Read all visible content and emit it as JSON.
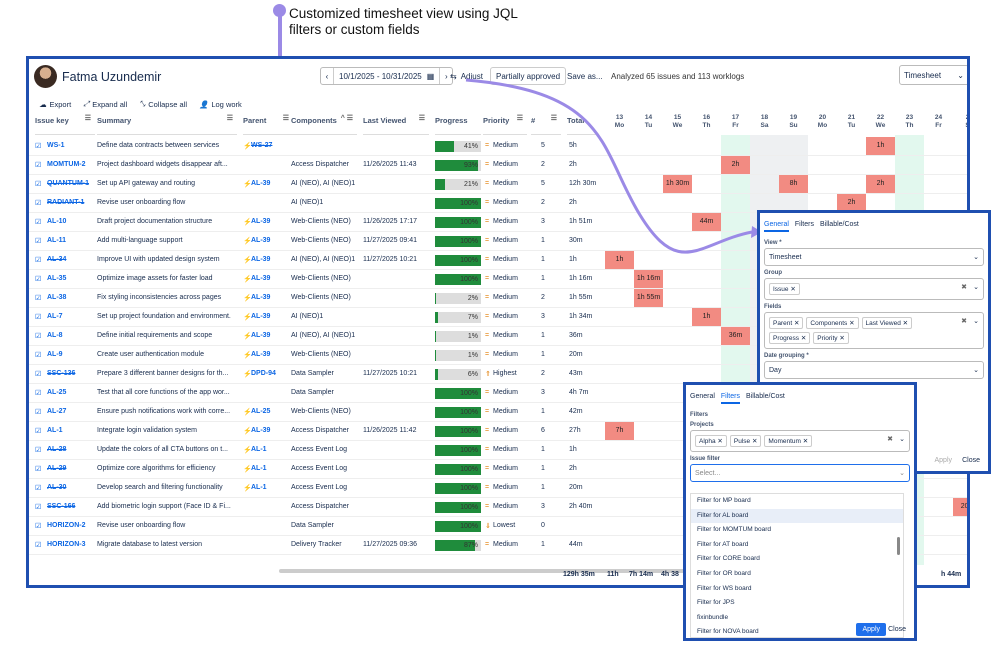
{
  "caption": {
    "line1": "Customized timesheet view using JQL",
    "line2": "filters or custom fields"
  },
  "header": {
    "user_name": "Fatma Uzundemir",
    "date_range": "10/1/2025 - 10/31/2025",
    "adjust_label": "Adjust",
    "approval_label": "Partially approved",
    "save_label": "Save as...",
    "summary": "Analyzed 65 issues and 113 worklogs",
    "view_select": "Timesheet"
  },
  "toolbar": {
    "export": "Export",
    "expand": "Expand all",
    "collapse": "Collapse all",
    "log": "Log work"
  },
  "columns": {
    "issue_key": "Issue key",
    "summary": "Summary",
    "parent": "Parent",
    "components": "Components",
    "last_viewed": "Last Viewed",
    "progress": "Progress",
    "priority": "Priority",
    "hash": "#",
    "total": "Total"
  },
  "days": [
    {
      "n": "13",
      "d": "Mo"
    },
    {
      "n": "14",
      "d": "Tu"
    },
    {
      "n": "15",
      "d": "We"
    },
    {
      "n": "16",
      "d": "Th"
    },
    {
      "n": "17",
      "d": "Fr"
    },
    {
      "n": "18",
      "d": "Sa"
    },
    {
      "n": "19",
      "d": "Su"
    },
    {
      "n": "20",
      "d": "Mo"
    },
    {
      "n": "21",
      "d": "Tu"
    },
    {
      "n": "22",
      "d": "We"
    },
    {
      "n": "23",
      "d": "Th"
    },
    {
      "n": "24",
      "d": "Fr"
    },
    {
      "n": "2",
      "d": "S"
    }
  ],
  "rows": [
    {
      "key": "WS-1",
      "strike": false,
      "summary": "Define data contracts between services",
      "parent": "WS-27",
      "parent_strike": true,
      "components": "",
      "viewed": "",
      "progress": 41,
      "priority": "Medium",
      "count": "5",
      "total": "5h",
      "work": {
        "9": "1h"
      }
    },
    {
      "key": "MOMTUM-2",
      "strike": false,
      "summary": "Project dashboard widgets disappear aft...",
      "parent": "",
      "parent_strike": false,
      "components": "Access Dispatcher",
      "viewed": "11/26/2025 11:43",
      "progress": 93,
      "priority": "Medium",
      "count": "2",
      "total": "2h",
      "work": {
        "4": "2h"
      }
    },
    {
      "key": "QUANTUM-1",
      "strike": true,
      "summary": "Set up API gateway and routing",
      "parent": "AL-39",
      "parent_strike": false,
      "components": "AI (NEO), AI (NEO)1",
      "viewed": "",
      "progress": 21,
      "priority": "Medium",
      "count": "5",
      "total": "12h 30m",
      "work": {
        "2": "1h 30m",
        "6": "8h",
        "9": "2h"
      }
    },
    {
      "key": "RADIANT-1",
      "strike": true,
      "summary": "Revise user onboarding flow",
      "parent": "",
      "parent_strike": false,
      "components": "AI (NEO)1",
      "viewed": "",
      "progress": 100,
      "priority": "Medium",
      "count": "2",
      "total": "2h",
      "work": {
        "8": "2h"
      }
    },
    {
      "key": "AL-10",
      "strike": false,
      "summary": "Draft project documentation structure",
      "parent": "AL-39",
      "parent_strike": false,
      "components": "Web-Clients (NEO)",
      "viewed": "11/26/2025 17:17",
      "progress": 100,
      "priority": "Medium",
      "count": "3",
      "total": "1h 51m",
      "work": {
        "3": "44m"
      }
    },
    {
      "key": "AL-11",
      "strike": false,
      "summary": "Add multi-language support",
      "parent": "AL-39",
      "parent_strike": false,
      "components": "Web-Clients (NEO)",
      "viewed": "11/27/2025 09:41",
      "progress": 100,
      "priority": "Medium",
      "count": "1",
      "total": "30m",
      "work": {}
    },
    {
      "key": "AL-34",
      "strike": true,
      "summary": "Improve UI with updated design system",
      "parent": "AL-39",
      "parent_strike": false,
      "components": "AI (NEO), AI (NEO)1",
      "viewed": "11/27/2025 10:21",
      "progress": 100,
      "priority": "Medium",
      "count": "1",
      "total": "1h",
      "work": {
        "0": "1h"
      }
    },
    {
      "key": "AL-35",
      "strike": false,
      "summary": "Optimize image assets for faster load",
      "parent": "AL-39",
      "parent_strike": false,
      "components": "Web-Clients (NEO)",
      "viewed": "",
      "progress": 100,
      "priority": "Medium",
      "count": "1",
      "total": "1h 16m",
      "work": {
        "1": "1h 16m"
      }
    },
    {
      "key": "AL-38",
      "strike": false,
      "summary": "Fix styling inconsistencies across pages",
      "parent": "AL-39",
      "parent_strike": false,
      "components": "Web-Clients (NEO)",
      "viewed": "",
      "progress": 2,
      "priority": "Medium",
      "count": "2",
      "total": "1h 55m",
      "work": {
        "1": "1h 55m"
      }
    },
    {
      "key": "AL-7",
      "strike": false,
      "summary": "Set up project foundation and environment.",
      "parent": "AL-39",
      "parent_strike": false,
      "components": "AI (NEO)1",
      "viewed": "",
      "progress": 7,
      "priority": "Medium",
      "count": "3",
      "total": "1h 34m",
      "work": {
        "3": "1h"
      }
    },
    {
      "key": "AL-8",
      "strike": false,
      "summary": "Define initial requirements and scope",
      "parent": "AL-39",
      "parent_strike": false,
      "components": "AI (NEO), AI (NEO)1",
      "viewed": "",
      "progress": 1,
      "priority": "Medium",
      "count": "1",
      "total": "36m",
      "work": {
        "4": "36m"
      }
    },
    {
      "key": "AL-9",
      "strike": false,
      "summary": "Create user authentication module",
      "parent": "AL-39",
      "parent_strike": false,
      "components": "Web-Clients (NEO)",
      "viewed": "",
      "progress": 1,
      "priority": "Medium",
      "count": "1",
      "total": "20m",
      "work": {}
    },
    {
      "key": "SSC-136",
      "strike": true,
      "summary": "Prepare 3 different banner designs for th...",
      "parent": "DPD-94",
      "parent_strike": false,
      "components": "Data Sampler",
      "viewed": "11/27/2025 10:21",
      "progress": 6,
      "priority": "Highest",
      "count": "2",
      "total": "43m",
      "work": {}
    },
    {
      "key": "AL-25",
      "strike": false,
      "summary": "Test that all core functions of the app wor...",
      "parent": "",
      "parent_strike": false,
      "components": "Data Sampler",
      "viewed": "",
      "progress": 100,
      "priority": "Medium",
      "count": "3",
      "total": "4h 7m",
      "work": {}
    },
    {
      "key": "AL-27",
      "strike": false,
      "summary": "Ensure push notifications work with corre...",
      "parent": "AL-25",
      "parent_strike": false,
      "components": "Web-Clients (NEO)",
      "viewed": "",
      "progress": 100,
      "priority": "Medium",
      "count": "1",
      "total": "42m",
      "work": {}
    },
    {
      "key": "AL-1",
      "strike": false,
      "summary": "Integrate login validation system",
      "parent": "AL-39",
      "parent_strike": false,
      "components": "Access Dispatcher",
      "viewed": "11/26/2025 11:42",
      "progress": 100,
      "priority": "Medium",
      "count": "6",
      "total": "27h",
      "work": {
        "0": "7h"
      }
    },
    {
      "key": "AL-28",
      "strike": true,
      "summary": "Update the colors of all CTA buttons on t...",
      "parent": "AL-1",
      "parent_strike": false,
      "components": "Access Event Log",
      "viewed": "",
      "progress": 100,
      "priority": "Medium",
      "count": "1",
      "total": "1h",
      "work": {}
    },
    {
      "key": "AL-29",
      "strike": true,
      "summary": "Optimize core algorithms for efficiency",
      "parent": "AL-1",
      "parent_strike": false,
      "components": "Access Event Log",
      "viewed": "",
      "progress": 100,
      "priority": "Medium",
      "count": "1",
      "total": "2h",
      "work": {}
    },
    {
      "key": "AL-30",
      "strike": true,
      "summary": "Develop search and filtering functionality",
      "parent": "AL-1",
      "parent_strike": false,
      "components": "Access Event Log",
      "viewed": "",
      "progress": 100,
      "priority": "Medium",
      "count": "1",
      "total": "20m",
      "work": {}
    },
    {
      "key": "SSC-166",
      "strike": true,
      "summary": "Add biometric login support (Face ID & Fi...",
      "parent": "",
      "parent_strike": false,
      "components": "Access Dispatcher",
      "viewed": "",
      "progress": 100,
      "priority": "Medium",
      "count": "3",
      "total": "2h 40m",
      "work": {
        "12": "20m"
      }
    },
    {
      "key": "HORIZON-2",
      "strike": false,
      "summary": "Revise user onboarding flow",
      "parent": "",
      "parent_strike": false,
      "components": "Data Sampler",
      "viewed": "",
      "progress": 100,
      "priority": "Lowest",
      "count": "0",
      "total": "",
      "work": {}
    },
    {
      "key": "HORIZON-3",
      "strike": false,
      "summary": "Migrate database to latest version",
      "parent": "",
      "parent_strike": false,
      "components": "Delivery Tracker",
      "viewed": "11/27/2025 09:36",
      "progress": 87,
      "priority": "Medium",
      "count": "1",
      "total": "44m",
      "work": {}
    }
  ],
  "totals": {
    "total": "129h 35m",
    "d0": "11h",
    "d1": "7h 14m",
    "d2": "4h 38",
    "d12": "h 44m"
  },
  "panel_general": {
    "tabs": [
      "General",
      "Filters",
      "Billable/Cost"
    ],
    "view_label": "View",
    "view_value": "Timesheet",
    "group_label": "Group",
    "group_chip": "Issue",
    "fields_label": "Fields",
    "field_chips": [
      "Parent",
      "Components",
      "Last Viewed",
      "Progress",
      "Priority"
    ],
    "date_label": "Date grouping",
    "date_value": "Day",
    "apply": "Apply",
    "close": "Close"
  },
  "panel_filters": {
    "tabs": [
      "General",
      "Filters",
      "Billable/Cost"
    ],
    "filters_label": "Filters",
    "projects_label": "Projects",
    "project_chips": [
      "Alpha",
      "Pulse",
      "Momentum"
    ],
    "issue_filter_label": "Issue filter",
    "placeholder": "Select...",
    "options": [
      "Filter for MP board",
      "Filter for AL board",
      "Filter for MOMTUM board",
      "Filter for AT board",
      "Filter for CORE board",
      "Filter for OR board",
      "Filter for WS board",
      "Filter for JPS",
      "fixinbundle",
      "Filter for NOVA board"
    ],
    "apply": "Apply",
    "close": "Close"
  },
  "colors": {
    "accent": "#1f4fb0",
    "work": "#f28b82",
    "progress": "#1f8c3c",
    "today": "#e2f8ee",
    "callout": "#9b8ae6"
  }
}
